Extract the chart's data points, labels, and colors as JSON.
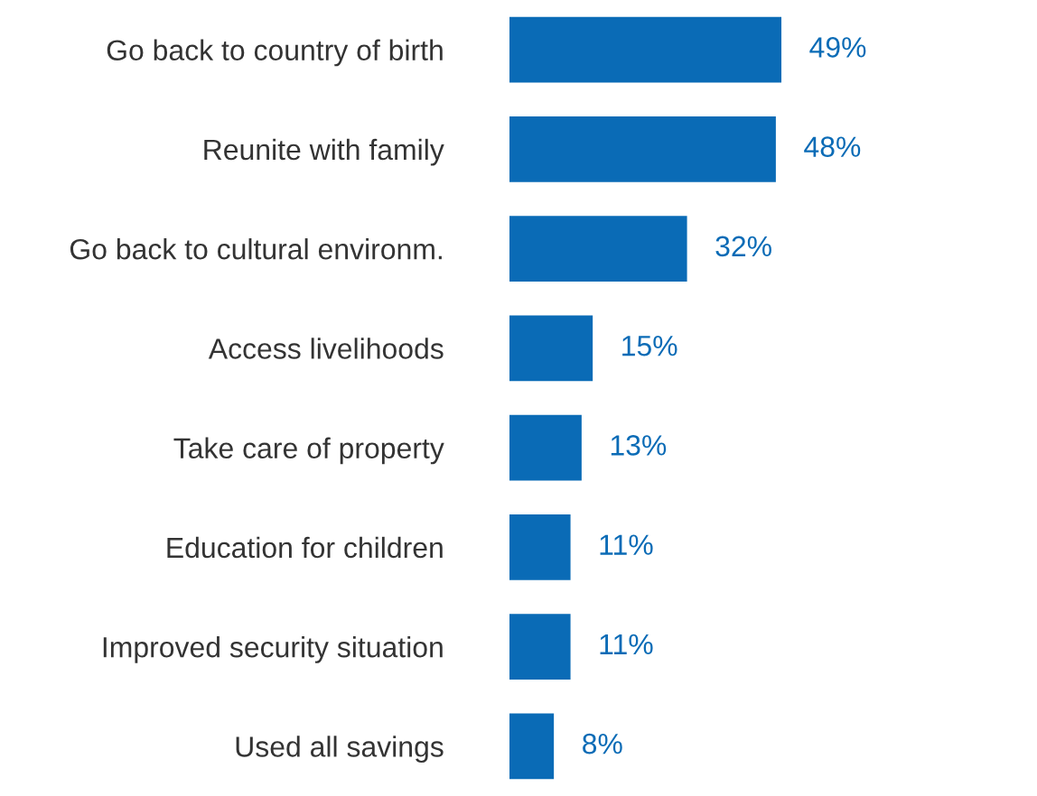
{
  "chart_data": {
    "type": "bar",
    "orientation": "horizontal",
    "categories": [
      "Go back to country of birth",
      "Reunite with family",
      "Go back to cultural environm.",
      "Access livelihoods",
      "Take care of property",
      "Education for children",
      "Improved security situation",
      "Used all savings"
    ],
    "values": [
      49,
      48,
      32,
      15,
      13,
      11,
      11,
      8
    ],
    "value_labels": [
      "49%",
      "48%",
      "32%",
      "15%",
      "13%",
      "11%",
      "11%",
      "8%"
    ],
    "color": "#0a6bb6",
    "tick_labels": "y",
    "grid": false,
    "legend": false
  }
}
